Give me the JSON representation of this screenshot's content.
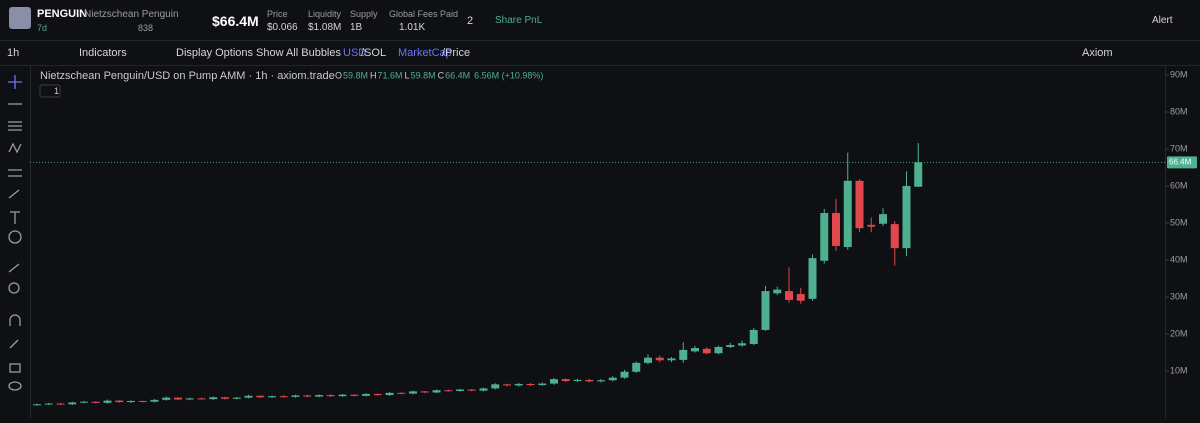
{
  "header": {
    "symbol": "PENGUIN",
    "name": "Nietzschean Penguin",
    "age": "7d",
    "holders": "838",
    "market_cap": "$66.4M",
    "stats": [
      {
        "label": "Price",
        "value": "$0.066"
      },
      {
        "label": "Liquidity",
        "value": "$1.08M"
      },
      {
        "label": "Supply",
        "value": "1B"
      },
      {
        "label": "Global Fees Paid",
        "value": "1.01K"
      }
    ],
    "count": "2",
    "share": "Share PnL",
    "alert": "Alert"
  },
  "toolbar": {
    "interval": "1h",
    "indicators": "Indicators",
    "display_options": "Display Options",
    "bubbles": "Show All Bubbles",
    "usd": "USD",
    "sol": "/SOL",
    "marketcap": "MarketCap",
    "price": "/Price",
    "provider": "Axiom"
  },
  "chart_data": {
    "type": "candlestick",
    "title": "Nietzschean Penguin/USD on Pump AMM · 1h · axiom.trade",
    "legend_ohlc": [
      {
        "key": "O",
        "value": "59.8M"
      },
      {
        "key": "H",
        "value": "71.6M"
      },
      {
        "key": "L",
        "value": "59.8M"
      },
      {
        "key": "C",
        "value": "66.4M"
      }
    ],
    "change": "6.56M (+10.98%)",
    "pane_count": "1",
    "last_close_label": "66.4M",
    "open": [
      0.8,
      1.0,
      1.2,
      1.0,
      1.5,
      1.7,
      1.4,
      2.0,
      1.6,
      1.9,
      1.7,
      2.2,
      2.8,
      2.3,
      2.6,
      2.4,
      2.9,
      2.5,
      2.8,
      3.3,
      2.9,
      3.2,
      3.0,
      3.4,
      3.1,
      3.5,
      3.2,
      3.6,
      3.3,
      3.8,
      3.5,
      4.1,
      3.9,
      4.5,
      4.2,
      4.8,
      4.6,
      5.0,
      4.7,
      5.3,
      6.4,
      6.1,
      6.5,
      6.2,
      6.6,
      7.8,
      7.3,
      7.6,
      7.2,
      7.5,
      8.2,
      9.8,
      12.2,
      13.6,
      12.9,
      13.0,
      15.3,
      16.0,
      14.8,
      16.5,
      16.9,
      17.3,
      21.1,
      31.0,
      31.6,
      30.8,
      29.5,
      39.8,
      52.7,
      43.5,
      61.4,
      49.5,
      49.8,
      49.7,
      43.2,
      59.8
    ],
    "high": [
      1.2,
      1.4,
      1.4,
      1.7,
      1.9,
      1.8,
      2.3,
      2.1,
      2.1,
      2.0,
      2.4,
      3.1,
      2.9,
      2.8,
      2.8,
      3.1,
      3.0,
      3.0,
      3.6,
      3.4,
      3.4,
      3.4,
      3.6,
      3.6,
      3.7,
      3.7,
      3.8,
      3.7,
      4.0,
      3.9,
      4.3,
      4.3,
      4.7,
      4.6,
      5.0,
      5.0,
      5.2,
      5.1,
      5.5,
      6.7,
      6.6,
      6.8,
      6.7,
      6.9,
      8.1,
      8.0,
      7.9,
      7.8,
      7.8,
      8.6,
      10.3,
      12.6,
      14.5,
      14.2,
      13.8,
      17.8,
      16.8,
      16.4,
      16.9,
      17.6,
      18.2,
      21.6,
      33.0,
      32.8,
      38.0,
      32.5,
      41.5,
      53.8,
      56.5,
      69.0,
      61.8,
      51.5,
      54.0,
      50.5,
      64.0,
      71.6
    ],
    "low": [
      0.6,
      0.8,
      0.8,
      0.8,
      1.3,
      1.2,
      1.2,
      1.4,
      1.4,
      1.5,
      1.5,
      2.0,
      2.1,
      2.1,
      2.3,
      2.2,
      2.3,
      2.3,
      2.6,
      2.7,
      2.7,
      2.8,
      2.8,
      2.9,
      2.9,
      3.0,
      3.0,
      3.1,
      3.1,
      3.3,
      3.3,
      3.7,
      3.7,
      4.0,
      4.0,
      4.4,
      4.4,
      4.5,
      4.5,
      5.0,
      5.8,
      5.8,
      5.9,
      6.0,
      6.3,
      7.0,
      7.0,
      6.9,
      6.9,
      7.2,
      7.9,
      9.5,
      11.8,
      12.4,
      12.4,
      12.2,
      15.0,
      14.5,
      14.5,
      16.2,
      16.6,
      17.0,
      20.8,
      30.5,
      28.5,
      28.2,
      29.0,
      39.0,
      42.5,
      42.8,
      47.5,
      47.5,
      49.2,
      38.5,
      41.0,
      59.8
    ],
    "close": [
      1.0,
      1.2,
      1.0,
      1.5,
      1.7,
      1.4,
      2.0,
      1.6,
      1.9,
      1.7,
      2.2,
      2.8,
      2.3,
      2.6,
      2.4,
      2.9,
      2.5,
      2.8,
      3.3,
      2.9,
      3.2,
      3.0,
      3.4,
      3.1,
      3.5,
      3.2,
      3.6,
      3.3,
      3.8,
      3.5,
      4.1,
      3.9,
      4.5,
      4.2,
      4.8,
      4.6,
      5.0,
      4.7,
      5.3,
      6.4,
      6.1,
      6.5,
      6.2,
      6.6,
      7.8,
      7.3,
      7.6,
      7.2,
      7.5,
      8.2,
      9.8,
      12.2,
      13.6,
      12.9,
      13.4,
      15.7,
      16.2,
      14.8,
      16.5,
      17.0,
      17.5,
      21.1,
      31.6,
      32.0,
      29.2,
      29.0,
      40.5,
      52.7,
      43.8,
      61.4,
      48.6,
      49.0,
      52.4,
      43.2,
      60.0,
      66.4
    ],
    "up_color": "#4fb08f",
    "down_color": "#e2474e",
    "ylim": [
      -2.7,
      92.7
    ],
    "yticks": [
      {
        "value": 10,
        "label": "10M"
      },
      {
        "value": 20,
        "label": "20M"
      },
      {
        "value": 30,
        "label": "30M"
      },
      {
        "value": 40,
        "label": "40M"
      },
      {
        "value": 50,
        "label": "50M"
      },
      {
        "value": 60,
        "label": "60M"
      },
      {
        "value": 70,
        "label": "70M"
      },
      {
        "value": 80,
        "label": "80M"
      },
      {
        "value": 90,
        "label": "90M"
      }
    ]
  }
}
